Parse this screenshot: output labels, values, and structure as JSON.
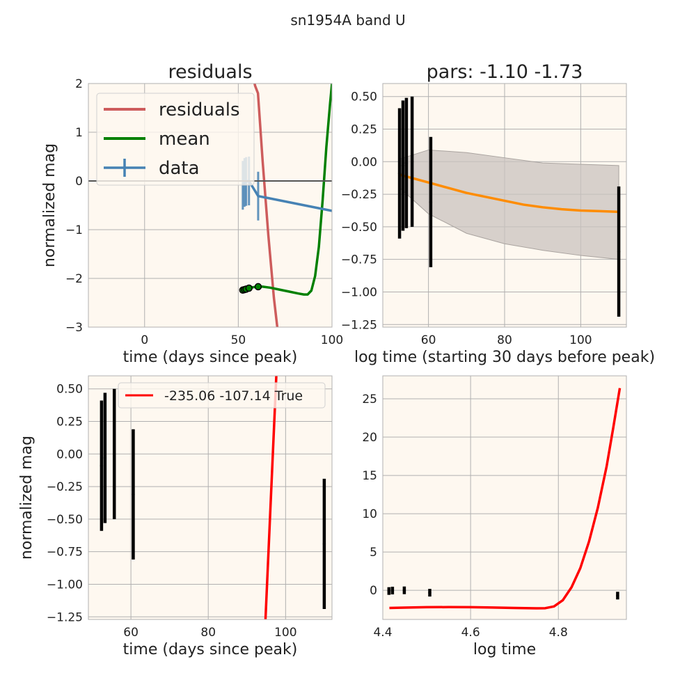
{
  "figure": {
    "suptitle": "sn1954A band U"
  },
  "chart_data": [
    {
      "id": "residuals",
      "type": "line",
      "title": "residuals",
      "xlabel": "time (days since peak)",
      "ylabel": "normalized mag",
      "xlim": [
        -30,
        100
      ],
      "ylim": [
        -3,
        2
      ],
      "xticks": [
        0,
        50,
        100
      ],
      "yticks": [
        -3,
        -2,
        -1,
        0,
        1,
        2
      ],
      "xtick_labels": [
        "0",
        "50",
        "100"
      ],
      "ytick_labels": [
        "−3",
        "−2",
        "−1",
        "0",
        "1",
        "2"
      ],
      "grid": true,
      "legend": {
        "placement": "top-left",
        "entries": [
          {
            "label": "residuals",
            "color": "#cd5c5c",
            "kind": "line"
          },
          {
            "label": "mean",
            "color": "#008000",
            "kind": "line"
          },
          {
            "label": "data",
            "color": "#4682b4",
            "kind": "errorbar"
          }
        ]
      },
      "series": [
        {
          "name": "residuals",
          "color": "#cd5c5c",
          "kind": "line",
          "x": [
            55,
            59,
            60.5,
            63,
            66,
            69,
            72
          ],
          "y": [
            2.6,
            1.95,
            1.8,
            0.4,
            -1.1,
            -2.4,
            -3.4
          ]
        },
        {
          "name": "mean",
          "color": "#008000",
          "kind": "line",
          "x": [
            52.4,
            54,
            56,
            58,
            60.5,
            63,
            67,
            72,
            77,
            82,
            85,
            87,
            89,
            91,
            93,
            95,
            97,
            99,
            100,
            101
          ],
          "y": [
            -2.24,
            -2.22,
            -2.2,
            -2.18,
            -2.17,
            -2.17,
            -2.19,
            -2.23,
            -2.27,
            -2.31,
            -2.33,
            -2.33,
            -2.25,
            -1.95,
            -1.35,
            -0.4,
            0.7,
            1.6,
            2.0,
            2.4
          ]
        },
        {
          "name": "mean-points",
          "color": "#008000",
          "kind": "points",
          "x": [
            52.4,
            53.3,
            54.2,
            55.7,
            60.6
          ],
          "y": [
            -2.24,
            -2.23,
            -2.22,
            -2.2,
            -2.17
          ]
        },
        {
          "name": "data",
          "color": "#4682b4",
          "kind": "errorbar",
          "x": [
            52.4,
            53.3,
            54.2,
            55.7,
            60.6,
            110
          ],
          "y": [
            -0.09,
            -0.03,
            -0.01,
            0.0,
            -0.31,
            -0.69
          ],
          "err": [
            0.5,
            0.5,
            0.5,
            0.5,
            0.5,
            0.5
          ]
        },
        {
          "name": "zero-line",
          "color": "#555555",
          "kind": "hline",
          "y": 0
        }
      ]
    },
    {
      "id": "pars",
      "type": "line",
      "title": "pars: -1.10 -1.73",
      "xlabel": "log time (starting 30 days before peak)",
      "ylabel": "",
      "xlim": [
        48,
        112
      ],
      "ylim": [
        -1.27,
        0.6
      ],
      "xticks": [
        60,
        80,
        100
      ],
      "yticks": [
        -1.25,
        -1.0,
        -0.75,
        -0.5,
        -0.25,
        0.0,
        0.25,
        0.5
      ],
      "xtick_labels": [
        "60",
        "80",
        "100"
      ],
      "ytick_labels": [
        "−1.25",
        "−1.00",
        "−0.75",
        "−0.50",
        "−0.25",
        "0.00",
        "0.25",
        "0.50"
      ],
      "grid": true,
      "band": {
        "color": "#c9c3bf",
        "x": [
          52.4,
          60,
          70,
          80,
          90,
          100,
          110
        ],
        "upper": [
          0.02,
          0.09,
          0.07,
          0.03,
          -0.01,
          -0.02,
          -0.03
        ],
        "lower": [
          -0.2,
          -0.4,
          -0.55,
          -0.63,
          -0.68,
          -0.72,
          -0.75
        ]
      },
      "series": [
        {
          "name": "model",
          "color": "#ff8c00",
          "kind": "line",
          "x": [
            52.4,
            55,
            60,
            65,
            70,
            75,
            80,
            85,
            90,
            95,
            100,
            105,
            110
          ],
          "y": [
            -0.1,
            -0.12,
            -0.16,
            -0.2,
            -0.24,
            -0.27,
            -0.3,
            -0.33,
            -0.35,
            -0.365,
            -0.375,
            -0.38,
            -0.385
          ]
        },
        {
          "name": "data",
          "color": "#000000",
          "kind": "errorbar",
          "x": [
            52.4,
            53.3,
            54.2,
            55.7,
            60.6,
            110
          ],
          "y": [
            -0.09,
            -0.03,
            -0.01,
            0.0,
            -0.31,
            -0.69
          ],
          "err": [
            0.5,
            0.5,
            0.5,
            0.5,
            0.5,
            0.5
          ]
        }
      ]
    },
    {
      "id": "fit",
      "type": "line",
      "title": "",
      "xlabel": "time (days since peak)",
      "ylabel": "normalized mag",
      "xlim": [
        49,
        112
      ],
      "ylim": [
        -1.27,
        0.6
      ],
      "xticks": [
        60,
        80,
        100
      ],
      "yticks": [
        -1.25,
        -1.0,
        -0.75,
        -0.5,
        -0.25,
        0.0,
        0.25,
        0.5
      ],
      "xtick_labels": [
        "60",
        "80",
        "100"
      ],
      "ytick_labels": [
        "−1.25",
        "−1.00",
        "−0.75",
        "−0.50",
        "−0.25",
        "0.00",
        "0.25",
        "0.50"
      ],
      "grid": true,
      "legend": {
        "placement": "top-right",
        "entries": [
          {
            "label": "-235.06 -107.14 True",
            "color": "#ff0000",
            "kind": "line"
          }
        ]
      },
      "series": [
        {
          "name": "-235.06 -107.14 True",
          "color": "#ff0000",
          "kind": "line",
          "x": [
            94.8,
            97.6
          ],
          "y": [
            -1.27,
            0.6
          ]
        },
        {
          "name": "data",
          "color": "#000000",
          "kind": "errorbar",
          "x": [
            52.4,
            53.3,
            55.7,
            60.6,
            110
          ],
          "y": [
            -0.09,
            -0.03,
            0.0,
            -0.31,
            -0.69
          ],
          "err": [
            0.5,
            0.5,
            0.5,
            0.5,
            0.5
          ]
        }
      ]
    },
    {
      "id": "logtime",
      "type": "line",
      "title": "",
      "xlabel": "log time",
      "ylabel": "",
      "xlim": [
        4.4,
        4.955
      ],
      "ylim": [
        -3.8,
        28
      ],
      "xticks": [
        4.4,
        4.6,
        4.8
      ],
      "yticks": [
        0,
        5,
        10,
        15,
        20,
        25
      ],
      "xtick_labels": [
        "4.4",
        "4.6",
        "4.8"
      ],
      "ytick_labels": [
        "0",
        "5",
        "10",
        "15",
        "20",
        "25"
      ],
      "grid": true,
      "series": [
        {
          "name": "curve",
          "color": "#ff0000",
          "kind": "line",
          "x": [
            4.415,
            4.45,
            4.5,
            4.55,
            4.6,
            4.65,
            4.7,
            4.75,
            4.77,
            4.79,
            4.81,
            4.83,
            4.85,
            4.87,
            4.89,
            4.91,
            4.925,
            4.94
          ],
          "y": [
            -2.3,
            -2.25,
            -2.2,
            -2.19,
            -2.2,
            -2.24,
            -2.3,
            -2.35,
            -2.33,
            -2.1,
            -1.3,
            0.4,
            2.9,
            6.4,
            10.8,
            16.2,
            21.2,
            26.4
          ]
        },
        {
          "name": "data",
          "color": "#000000",
          "kind": "errorbar",
          "x": [
            4.414,
            4.422,
            4.449,
            4.507,
            4.935
          ],
          "y": [
            -0.09,
            -0.03,
            0.0,
            -0.31,
            -0.69
          ],
          "err": [
            0.5,
            0.5,
            0.5,
            0.5,
            0.5
          ]
        }
      ]
    }
  ]
}
